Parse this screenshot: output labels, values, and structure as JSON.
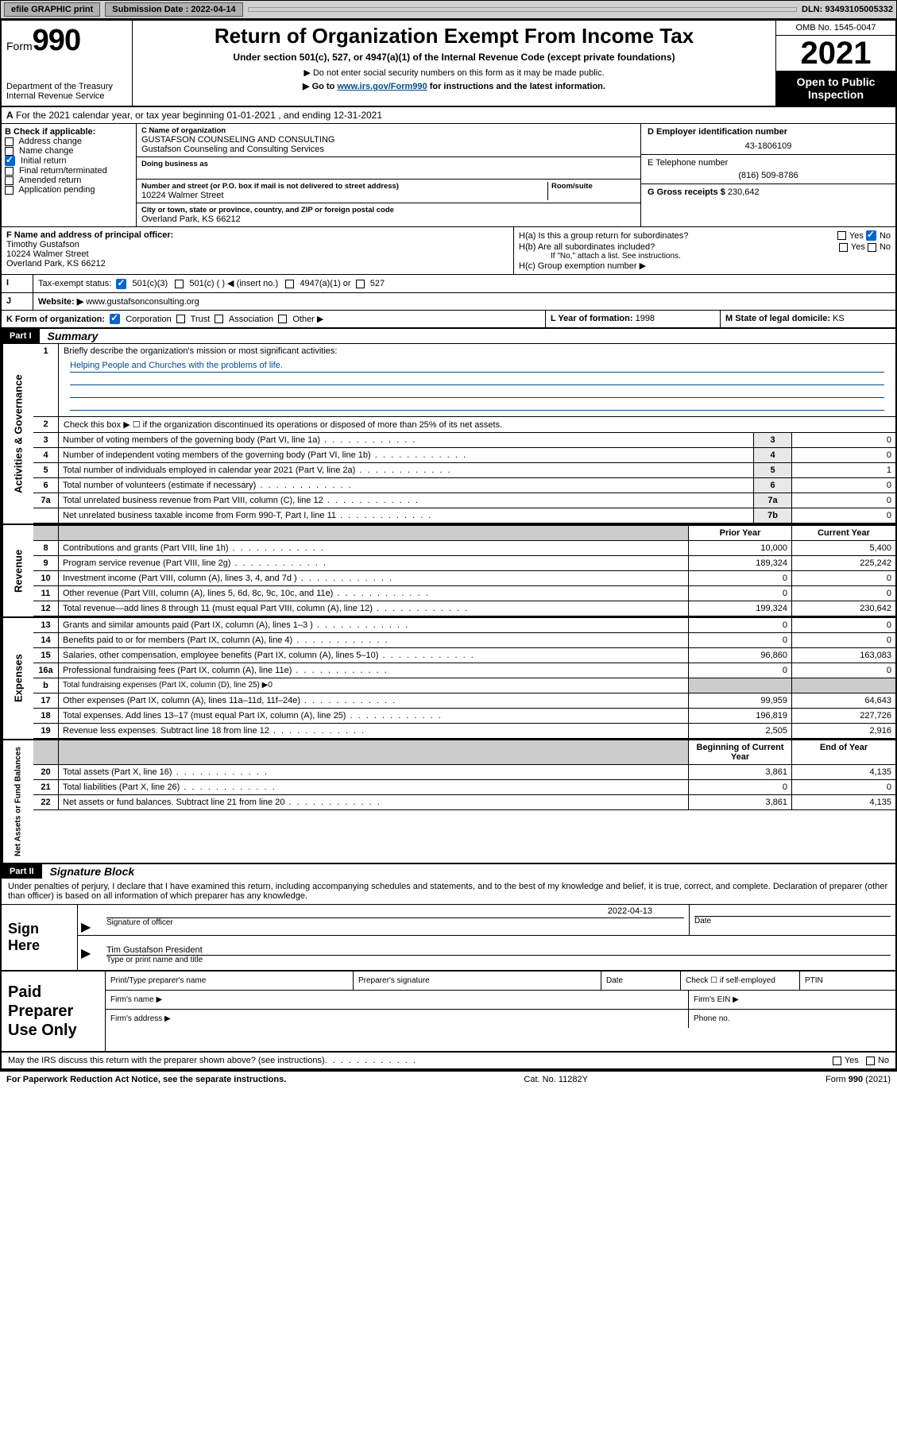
{
  "topbar": {
    "efile": "efile GRAPHIC print",
    "submission_label": "Submission Date : 2022-04-14",
    "dln": "DLN: 93493105005332"
  },
  "header": {
    "form_word": "Form",
    "form_number": "990",
    "dept": "Department of the Treasury",
    "irs": "Internal Revenue Service",
    "title": "Return of Organization Exempt From Income Tax",
    "sub1": "Under section 501(c), 527, or 4947(a)(1) of the Internal Revenue Code (except private foundations)",
    "sub2": "▶ Do not enter social security numbers on this form as it may be made public.",
    "sub3_a": "▶ Go to ",
    "sub3_link": "www.irs.gov/Form990",
    "sub3_b": " for instructions and the latest information.",
    "omb": "OMB No. 1545-0047",
    "year": "2021",
    "open": "Open to Public Inspection"
  },
  "lineA": "For the 2021 calendar year, or tax year beginning 01-01-2021   , and ending 12-31-2021",
  "boxB": {
    "header": "B Check if applicable:",
    "items": [
      "Address change",
      "Name change",
      "Initial return",
      "Final return/terminated",
      "Amended return",
      "Application pending"
    ],
    "checked_index": 2
  },
  "boxC": {
    "name_label": "C Name of organization",
    "name1": "GUSTAFSON COUNSELING AND CONSULTING",
    "name2": "Gustafson Counseling and Consulting Services",
    "dba_label": "Doing business as",
    "street_label": "Number and street (or P.O. box if mail is not delivered to street address)",
    "room_label": "Room/suite",
    "street": "10224 Walmer Street",
    "city_label": "City or town, state or province, country, and ZIP or foreign postal code",
    "city": "Overland Park, KS  66212"
  },
  "boxD": {
    "label": "D Employer identification number",
    "value": "43-1806109"
  },
  "boxE": {
    "label": "E Telephone number",
    "value": "(816) 509-8786"
  },
  "boxG": {
    "label": "G Gross receipts $",
    "value": "230,642"
  },
  "boxF": {
    "label": "F Name and address of principal officer:",
    "name": "Timothy Gustafson",
    "street": "10224 Walmer Street",
    "city": "Overland Park, KS  66212"
  },
  "boxH": {
    "a": "H(a)  Is this a group return for subordinates?",
    "b": "H(b)  Are all subordinates included?",
    "b_note": "If \"No,\" attach a list. See instructions.",
    "c": "H(c)  Group exemption number ▶",
    "yes": "Yes",
    "no": "No"
  },
  "rowI": {
    "label": "Tax-exempt status:",
    "opt1": "501(c)(3)",
    "opt2": "501(c) (  ) ◀ (insert no.)",
    "opt3": "4947(a)(1) or",
    "opt4": "527"
  },
  "rowJ": {
    "label": "Website: ▶",
    "value": "www.gustafsonconsulting.org"
  },
  "rowK": {
    "label": "K Form of organization:",
    "opts": [
      "Corporation",
      "Trust",
      "Association",
      "Other ▶"
    ],
    "checked": 0
  },
  "rowL": {
    "label": "L Year of formation:",
    "value": "1998"
  },
  "rowM": {
    "label": "M State of legal domicile:",
    "value": "KS"
  },
  "part1": {
    "label": "Part I",
    "title": "Summary"
  },
  "governance": {
    "l1": "Briefly describe the organization's mission or most significant activities:",
    "mission": "Helping People and Churches with the problems of life.",
    "l2": "Check this box ▶ ☐  if the organization discontinued its operations or disposed of more than 25% of its net assets.",
    "rows": [
      {
        "n": "3",
        "t": "Number of voting members of the governing body (Part VI, line 1a)",
        "ln": "3",
        "v": "0"
      },
      {
        "n": "4",
        "t": "Number of independent voting members of the governing body (Part VI, line 1b)",
        "ln": "4",
        "v": "0"
      },
      {
        "n": "5",
        "t": "Total number of individuals employed in calendar year 2021 (Part V, line 2a)",
        "ln": "5",
        "v": "1"
      },
      {
        "n": "6",
        "t": "Total number of volunteers (estimate if necessary)",
        "ln": "6",
        "v": "0"
      },
      {
        "n": "7a",
        "t": "Total unrelated business revenue from Part VIII, column (C), line 12",
        "ln": "7a",
        "v": "0"
      },
      {
        "n": "",
        "t": "Net unrelated business taxable income from Form 990-T, Part I, line 11",
        "ln": "7b",
        "v": "0"
      }
    ]
  },
  "col_headers": {
    "prior": "Prior Year",
    "current": "Current Year",
    "boy": "Beginning of Current Year",
    "eoy": "End of Year"
  },
  "revenue": [
    {
      "n": "8",
      "t": "Contributions and grants (Part VIII, line 1h)",
      "p": "10,000",
      "c": "5,400"
    },
    {
      "n": "9",
      "t": "Program service revenue (Part VIII, line 2g)",
      "p": "189,324",
      "c": "225,242"
    },
    {
      "n": "10",
      "t": "Investment income (Part VIII, column (A), lines 3, 4, and 7d )",
      "p": "0",
      "c": "0"
    },
    {
      "n": "11",
      "t": "Other revenue (Part VIII, column (A), lines 5, 6d, 8c, 9c, 10c, and 11e)",
      "p": "0",
      "c": "0"
    },
    {
      "n": "12",
      "t": "Total revenue—add lines 8 through 11 (must equal Part VIII, column (A), line 12)",
      "p": "199,324",
      "c": "230,642"
    }
  ],
  "expenses": [
    {
      "n": "13",
      "t": "Grants and similar amounts paid (Part IX, column (A), lines 1–3 )",
      "p": "0",
      "c": "0"
    },
    {
      "n": "14",
      "t": "Benefits paid to or for members (Part IX, column (A), line 4)",
      "p": "0",
      "c": "0"
    },
    {
      "n": "15",
      "t": "Salaries, other compensation, employee benefits (Part IX, column (A), lines 5–10)",
      "p": "96,860",
      "c": "163,083"
    },
    {
      "n": "16a",
      "t": "Professional fundraising fees (Part IX, column (A), line 11e)",
      "p": "0",
      "c": "0"
    },
    {
      "n": "b",
      "t": "Total fundraising expenses (Part IX, column (D), line 25) ▶0",
      "p": "",
      "c": "",
      "shaded": true
    },
    {
      "n": "17",
      "t": "Other expenses (Part IX, column (A), lines 11a–11d, 11f–24e)",
      "p": "99,959",
      "c": "64,643"
    },
    {
      "n": "18",
      "t": "Total expenses. Add lines 13–17 (must equal Part IX, column (A), line 25)",
      "p": "196,819",
      "c": "227,726"
    },
    {
      "n": "19",
      "t": "Revenue less expenses. Subtract line 18 from line 12",
      "p": "2,505",
      "c": "2,916"
    }
  ],
  "netassets": [
    {
      "n": "20",
      "t": "Total assets (Part X, line 16)",
      "p": "3,861",
      "c": "4,135"
    },
    {
      "n": "21",
      "t": "Total liabilities (Part X, line 26)",
      "p": "0",
      "c": "0"
    },
    {
      "n": "22",
      "t": "Net assets or fund balances. Subtract line 21 from line 20",
      "p": "3,861",
      "c": "4,135"
    }
  ],
  "part2": {
    "label": "Part II",
    "title": "Signature Block"
  },
  "sig_decl": "Under penalties of perjury, I declare that I have examined this return, including accompanying schedules and statements, and to the best of my knowledge and belief, it is true, correct, and complete. Declaration of preparer (other than officer) is based on all information of which preparer has any knowledge.",
  "sign": {
    "here": "Sign Here",
    "officer_sig": "Signature of officer",
    "date_label": "Date",
    "date": "2022-04-13",
    "name": "Tim Gustafson  President",
    "name_label": "Type or print name and title"
  },
  "paid": {
    "label": "Paid Preparer Use Only",
    "r1": [
      "Print/Type preparer's name",
      "Preparer's signature",
      "Date",
      "Check ☐ if self-employed",
      "PTIN"
    ],
    "r2a": "Firm's name   ▶",
    "r2b": "Firm's EIN ▶",
    "r3a": "Firm's address ▶",
    "r3b": "Phone no."
  },
  "footer": {
    "q": "May the IRS discuss this return with the preparer shown above? (see instructions)",
    "yes": "Yes",
    "no": "No",
    "pra": "For Paperwork Reduction Act Notice, see the separate instructions.",
    "cat": "Cat. No. 11282Y",
    "form": "Form 990 (2021)"
  },
  "vlabels": {
    "gov": "Activities & Governance",
    "rev": "Revenue",
    "exp": "Expenses",
    "net": "Net Assets or Fund Balances"
  }
}
